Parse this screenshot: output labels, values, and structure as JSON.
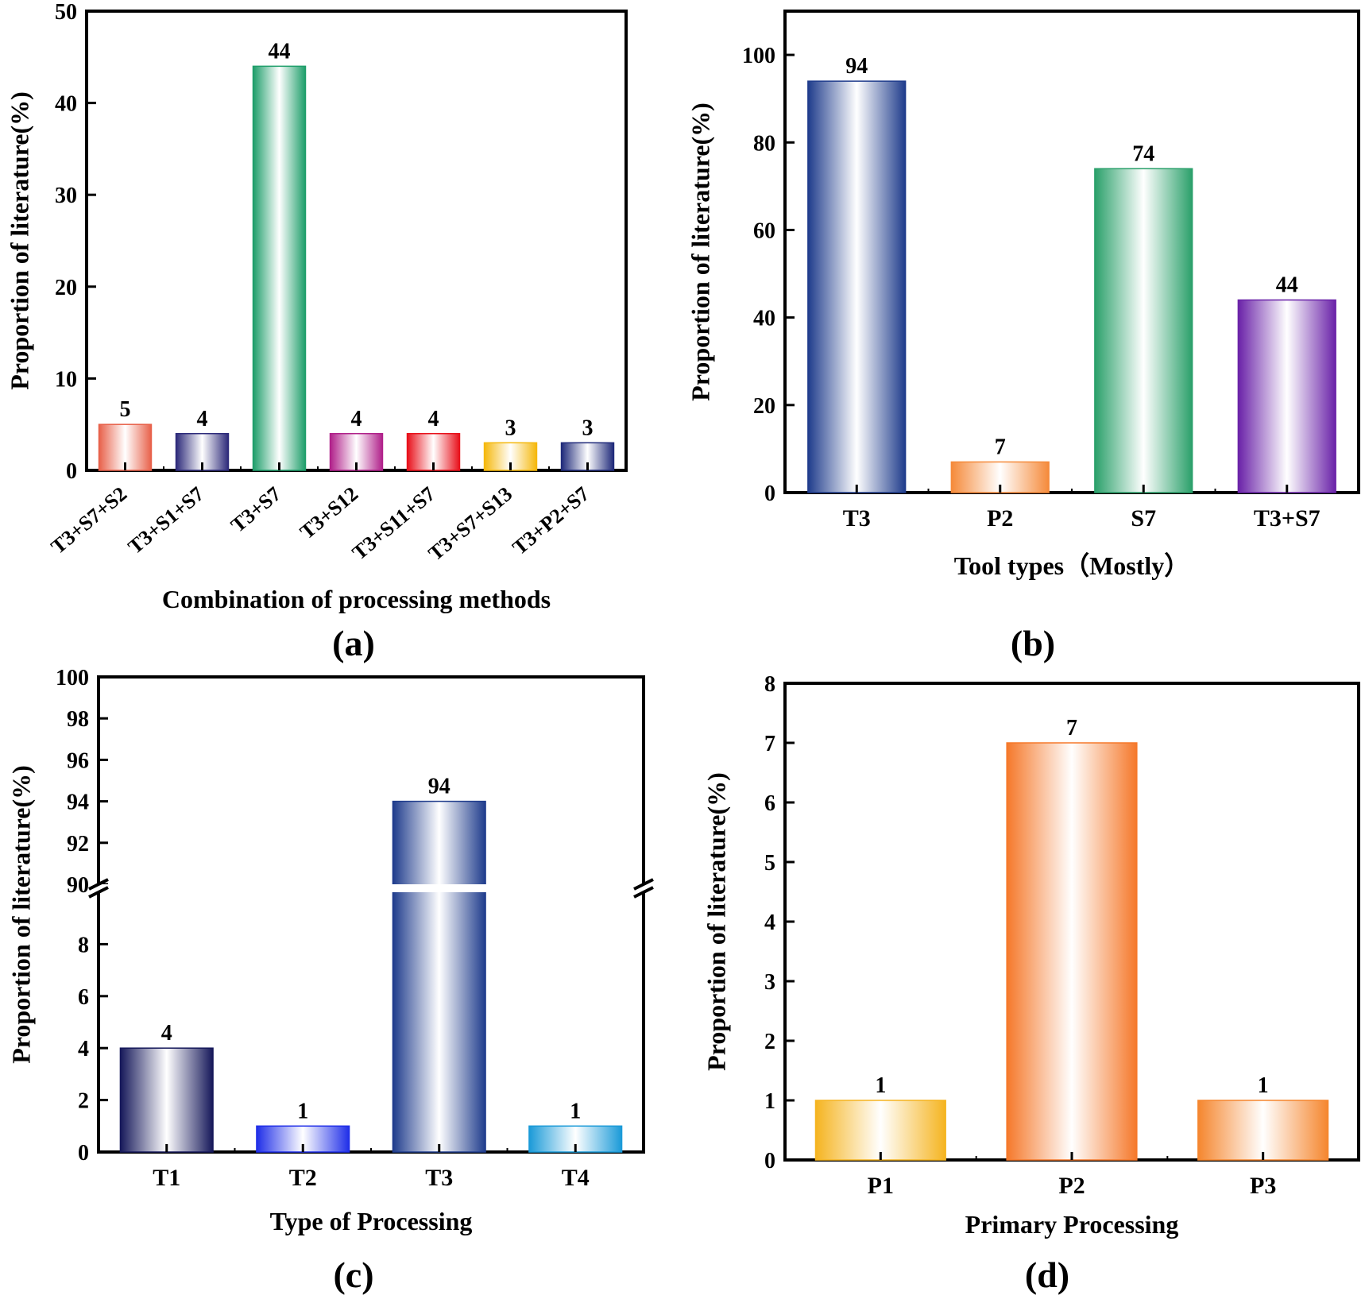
{
  "chart_data": [
    {
      "panel_label": "(a)",
      "type": "bar",
      "categories": [
        "T3+S7+S2",
        "T3+S1+S7",
        "T3+S7",
        "T3+S12",
        "T3+S11+S7",
        "T3+S7+S13",
        "T3+P2+S7"
      ],
      "values": [
        5,
        4,
        44,
        4,
        4,
        3,
        3
      ],
      "data_labels": [
        "5",
        "4",
        "44",
        "4",
        "4",
        "3",
        "3"
      ],
      "colors": [
        "#e8614a",
        "#2d2a7a",
        "#1e9e6a",
        "#b0208a",
        "#e8101a",
        "#f5b80c",
        "#1f2a7a"
      ],
      "xlabel": "Combination of processing methods",
      "ylabel": "Proportion of literature(%)",
      "ylim": [
        0,
        50
      ],
      "yticks": [
        0,
        10,
        20,
        30,
        40,
        50
      ],
      "ytick_labels": [
        "0",
        "10",
        "20",
        "30",
        "40",
        "50"
      ],
      "grid": false,
      "legend": "none"
    },
    {
      "panel_label": "(b)",
      "type": "bar",
      "categories": [
        "T3",
        "P2",
        "S7",
        "T3+S7"
      ],
      "values": [
        94,
        7,
        74,
        44
      ],
      "data_labels": [
        "94",
        "7",
        "74",
        "44"
      ],
      "colors": [
        "#1f3c8c",
        "#f58a3a",
        "#2aa06a",
        "#6a22a8"
      ],
      "xlabel": "Tool types（Mostly）",
      "ylabel": "Proportion of literature(%)",
      "ylim": [
        0,
        110
      ],
      "yticks": [
        0,
        20,
        40,
        60,
        80,
        100
      ],
      "ytick_labels": [
        "0",
        "20",
        "40",
        "60",
        "80",
        "100"
      ],
      "grid": false,
      "legend": "none"
    },
    {
      "panel_label": "(c)",
      "type": "bar",
      "categories": [
        "T1",
        "T2",
        "T3",
        "T4"
      ],
      "values": [
        4,
        1,
        94,
        1
      ],
      "data_labels": [
        "4",
        "1",
        "94",
        "1"
      ],
      "colors": [
        "#16185a",
        "#1f2ee8",
        "#1f3c8c",
        "#1a9ad8"
      ],
      "xlabel": "Type of Processing",
      "ylabel": "Proportion of literature(%)",
      "axis_break": true,
      "ylim_lower": [
        0,
        10
      ],
      "ylim_upper": [
        90,
        100
      ],
      "yticks_lower": [
        0,
        2,
        4,
        6,
        8
      ],
      "ytick_labels_lower": [
        "0",
        "2",
        "4",
        "6",
        "8"
      ],
      "yticks_upper": [
        90,
        92,
        94,
        96,
        98,
        100
      ],
      "ytick_labels_upper": [
        "90",
        "92",
        "94",
        "96",
        "98",
        "100"
      ],
      "grid": false,
      "legend": "none"
    },
    {
      "panel_label": "(d)",
      "type": "bar",
      "categories": [
        "P1",
        "P2",
        "P3"
      ],
      "values": [
        1,
        7,
        1
      ],
      "data_labels": [
        "1",
        "7",
        "1"
      ],
      "colors": [
        "#f5b420",
        "#f5782a",
        "#f5862e"
      ],
      "xlabel": "Primary Processing",
      "ylabel": "Proportion of literature(%)",
      "ylim": [
        0,
        8
      ],
      "yticks": [
        0,
        1,
        2,
        3,
        4,
        5,
        6,
        7,
        8
      ],
      "ytick_labels": [
        "0",
        "1",
        "2",
        "3",
        "4",
        "5",
        "6",
        "7",
        "8"
      ],
      "grid": false,
      "legend": "none"
    }
  ]
}
